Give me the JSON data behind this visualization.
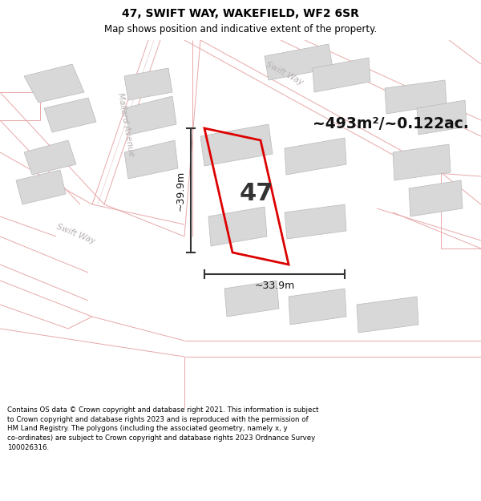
{
  "title_line1": "47, SWIFT WAY, WAKEFIELD, WF2 6SR",
  "title_line2": "Map shows position and indicative extent of the property.",
  "footer_text": "Contains OS data © Crown copyright and database right 2021. This information is subject to Crown copyright and database rights 2023 and is reproduced with the permission of HM Land Registry. The polygons (including the associated geometry, namely x, y co-ordinates) are subject to Crown copyright and database rights 2023 Ordnance Survey 100026316.",
  "area_label": "~493m²/~0.122ac.",
  "plot_number": "47",
  "dim_horizontal": "~33.9m",
  "dim_vertical": "~39.9m",
  "map_bg_color": "#f5f3f1",
  "plot_outline_color": "#dd0000",
  "building_fill_color": "#d8d8d8",
  "building_edge_color": "#b8b8b8",
  "street_line_color": "#e8a8a8",
  "road_label_color": "#b8b0b0",
  "dim_line_color": "#333333",
  "label_swift_way_diagonal": "Swift Way",
  "label_mallard_ave": "Mallard Avenue",
  "label_swift_way_lower": "Swift Way",
  "title_fontsize": 10,
  "subtitle_fontsize": 8.5,
  "footer_fontsize": 6.2
}
